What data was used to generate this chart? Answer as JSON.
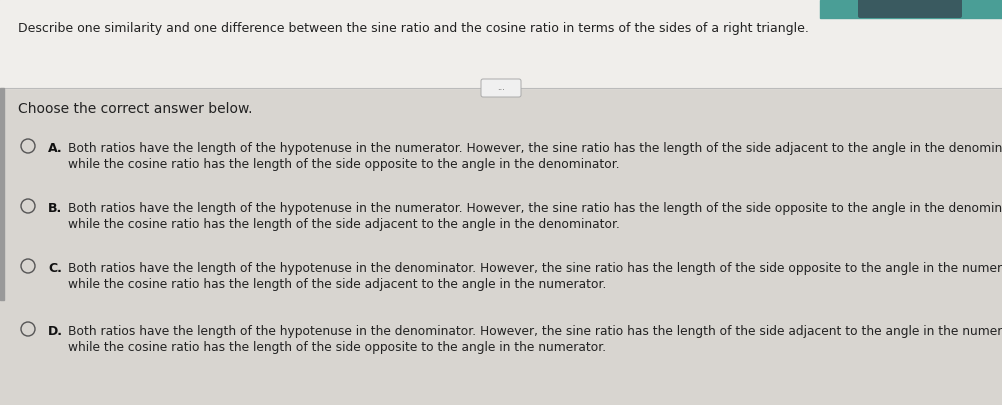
{
  "header_bg": "#f0eeeb",
  "body_bg": "#d8d5d0",
  "teal_color": "#4a9e96",
  "question": "Describe one similarity and one difference between the sine ratio and the cosine ratio in terms of the sides of a right triangle.",
  "choose_text": "Choose the correct answer below.",
  "options": [
    {
      "label": "A.",
      "line1": "Both ratios have the length of the hypotenuse in the numerator. However, the sine ratio has the length of the side adjacent to the angle in the denominator,",
      "line2": "while the cosine ratio has the length of the side opposite to the angle in the denominator."
    },
    {
      "label": "B.",
      "line1": "Both ratios have the length of the hypotenuse in the numerator. However, the sine ratio has the length of the side opposite to the angle in the denominator,",
      "line2": "while the cosine ratio has the length of the side adjacent to the angle in the denominator."
    },
    {
      "label": "C.",
      "line1": "Both ratios have the length of the hypotenuse in the denominator. However, the sine ratio has the length of the side opposite to the angle in the numerator,",
      "line2": "while the cosine ratio has the length of the side adjacent to the angle in the numerator."
    },
    {
      "label": "D.",
      "line1": "Both ratios have the length of the hypotenuse in the denominator. However, the sine ratio has the length of the side adjacent to the angle in the numerator,",
      "line2": "while the cosine ratio has the length of the side opposite to the angle in the numerator."
    }
  ],
  "dots_text": "...",
  "circle_color": "#555555",
  "text_color": "#222222",
  "label_color": "#111111",
  "left_bar_color": "#999999",
  "sep_line_color": "#bbbbbb",
  "font_size_question": 9.0,
  "font_size_choose": 10.0,
  "font_size_option": 8.8,
  "font_size_label": 9.0
}
